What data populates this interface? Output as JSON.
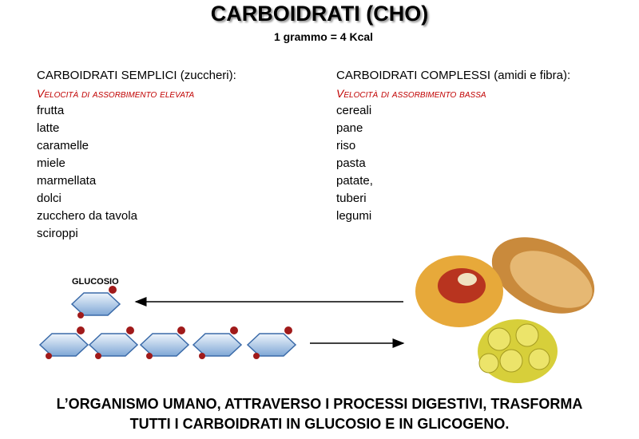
{
  "header": {
    "title": "CARBOIDRATI (CHO)",
    "subtitle": "1 grammo = 4 Kcal"
  },
  "columns": [
    {
      "heading": "CARBOIDRATI SEMPLICI",
      "note": "(zuccheri):",
      "speed": "Velocità di assorbimento elevata",
      "items": [
        "frutta",
        "latte",
        "caramelle",
        "miele",
        "marmellata",
        "dolci",
        "zucchero da tavola",
        "sciroppi"
      ]
    },
    {
      "heading": "CARBOIDRATI COMPLESSI",
      "note": "(amidi e fibra):",
      "speed": "Velocità di assorbimento bassa",
      "items": [
        "cereali",
        "pane",
        "riso",
        "pasta",
        "patate,",
        "tuberi",
        "legumi"
      ]
    }
  ],
  "diagram": {
    "label": "GLUCOSIO"
  },
  "footer": {
    "lines": [
      "L’ORGANISMO UMANO, ATTRAVERSO I PROCESSI DIGESTIVI, TRASFORMA",
      "TUTTI I CARBOIDRATI IN GLUCOSIO E IN GLICOGENO."
    ]
  }
}
